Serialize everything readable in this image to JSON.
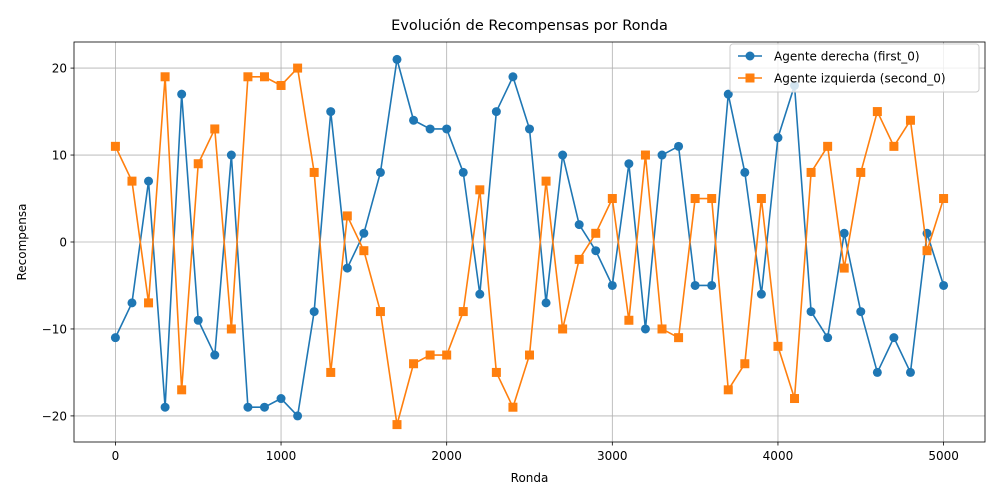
{
  "chart_data": {
    "type": "line",
    "title": "Evolución de Recompensas por Ronda",
    "xlabel": "Ronda",
    "ylabel": "Recompensa",
    "xlim": [
      -250,
      5250
    ],
    "ylim": [
      -23,
      23
    ],
    "xticks": [
      0,
      1000,
      2000,
      3000,
      4000,
      5000
    ],
    "xtick_labels": [
      "0",
      "1000",
      "2000",
      "3000",
      "4000",
      "5000"
    ],
    "yticks": [
      -20,
      -10,
      0,
      10,
      20
    ],
    "ytick_labels": [
      "−20",
      "−10",
      "0",
      "10",
      "20"
    ],
    "grid": true,
    "legend_position": "top-right",
    "x": [
      0,
      100,
      200,
      300,
      400,
      500,
      600,
      700,
      800,
      900,
      1000,
      1100,
      1200,
      1300,
      1400,
      1500,
      1600,
      1700,
      1800,
      1900,
      2000,
      2100,
      2200,
      2300,
      2400,
      2500,
      2600,
      2700,
      2800,
      2900,
      3000,
      3100,
      3200,
      3300,
      3400,
      3500,
      3600,
      3700,
      3800,
      3900,
      4000,
      4100,
      4200,
      4300,
      4400,
      4500,
      4600,
      4700,
      4800,
      4900,
      5000
    ],
    "series": [
      {
        "name": "Agente derecha (first_0)",
        "color": "#1f77b4",
        "marker": "circle",
        "values": [
          -11,
          -7,
          7,
          -19,
          17,
          -9,
          -13,
          10,
          -19,
          -19,
          -18,
          -20,
          -8,
          15,
          -3,
          1,
          8,
          21,
          14,
          13,
          13,
          8,
          -6,
          15,
          19,
          13,
          -7,
          10,
          2,
          -1,
          -5,
          9,
          -10,
          10,
          11,
          -5,
          -5,
          17,
          8,
          -6,
          12,
          18,
          -8,
          -11,
          1,
          -8,
          -15,
          -11,
          -15,
          1,
          -5
        ]
      },
      {
        "name": "Agente izquierda (second_0)",
        "color": "#ff7f0e",
        "marker": "square",
        "values": [
          11,
          7,
          -7,
          19,
          -17,
          9,
          13,
          -10,
          19,
          19,
          18,
          20,
          8,
          -15,
          3,
          -1,
          -8,
          -21,
          -14,
          -13,
          -13,
          -8,
          6,
          -15,
          -19,
          -13,
          7,
          -10,
          -2,
          1,
          5,
          -9,
          10,
          -10,
          -11,
          5,
          5,
          -17,
          -14,
          5,
          -12,
          -18,
          8,
          11,
          -3,
          8,
          15,
          11,
          14,
          -1,
          5
        ]
      }
    ]
  }
}
